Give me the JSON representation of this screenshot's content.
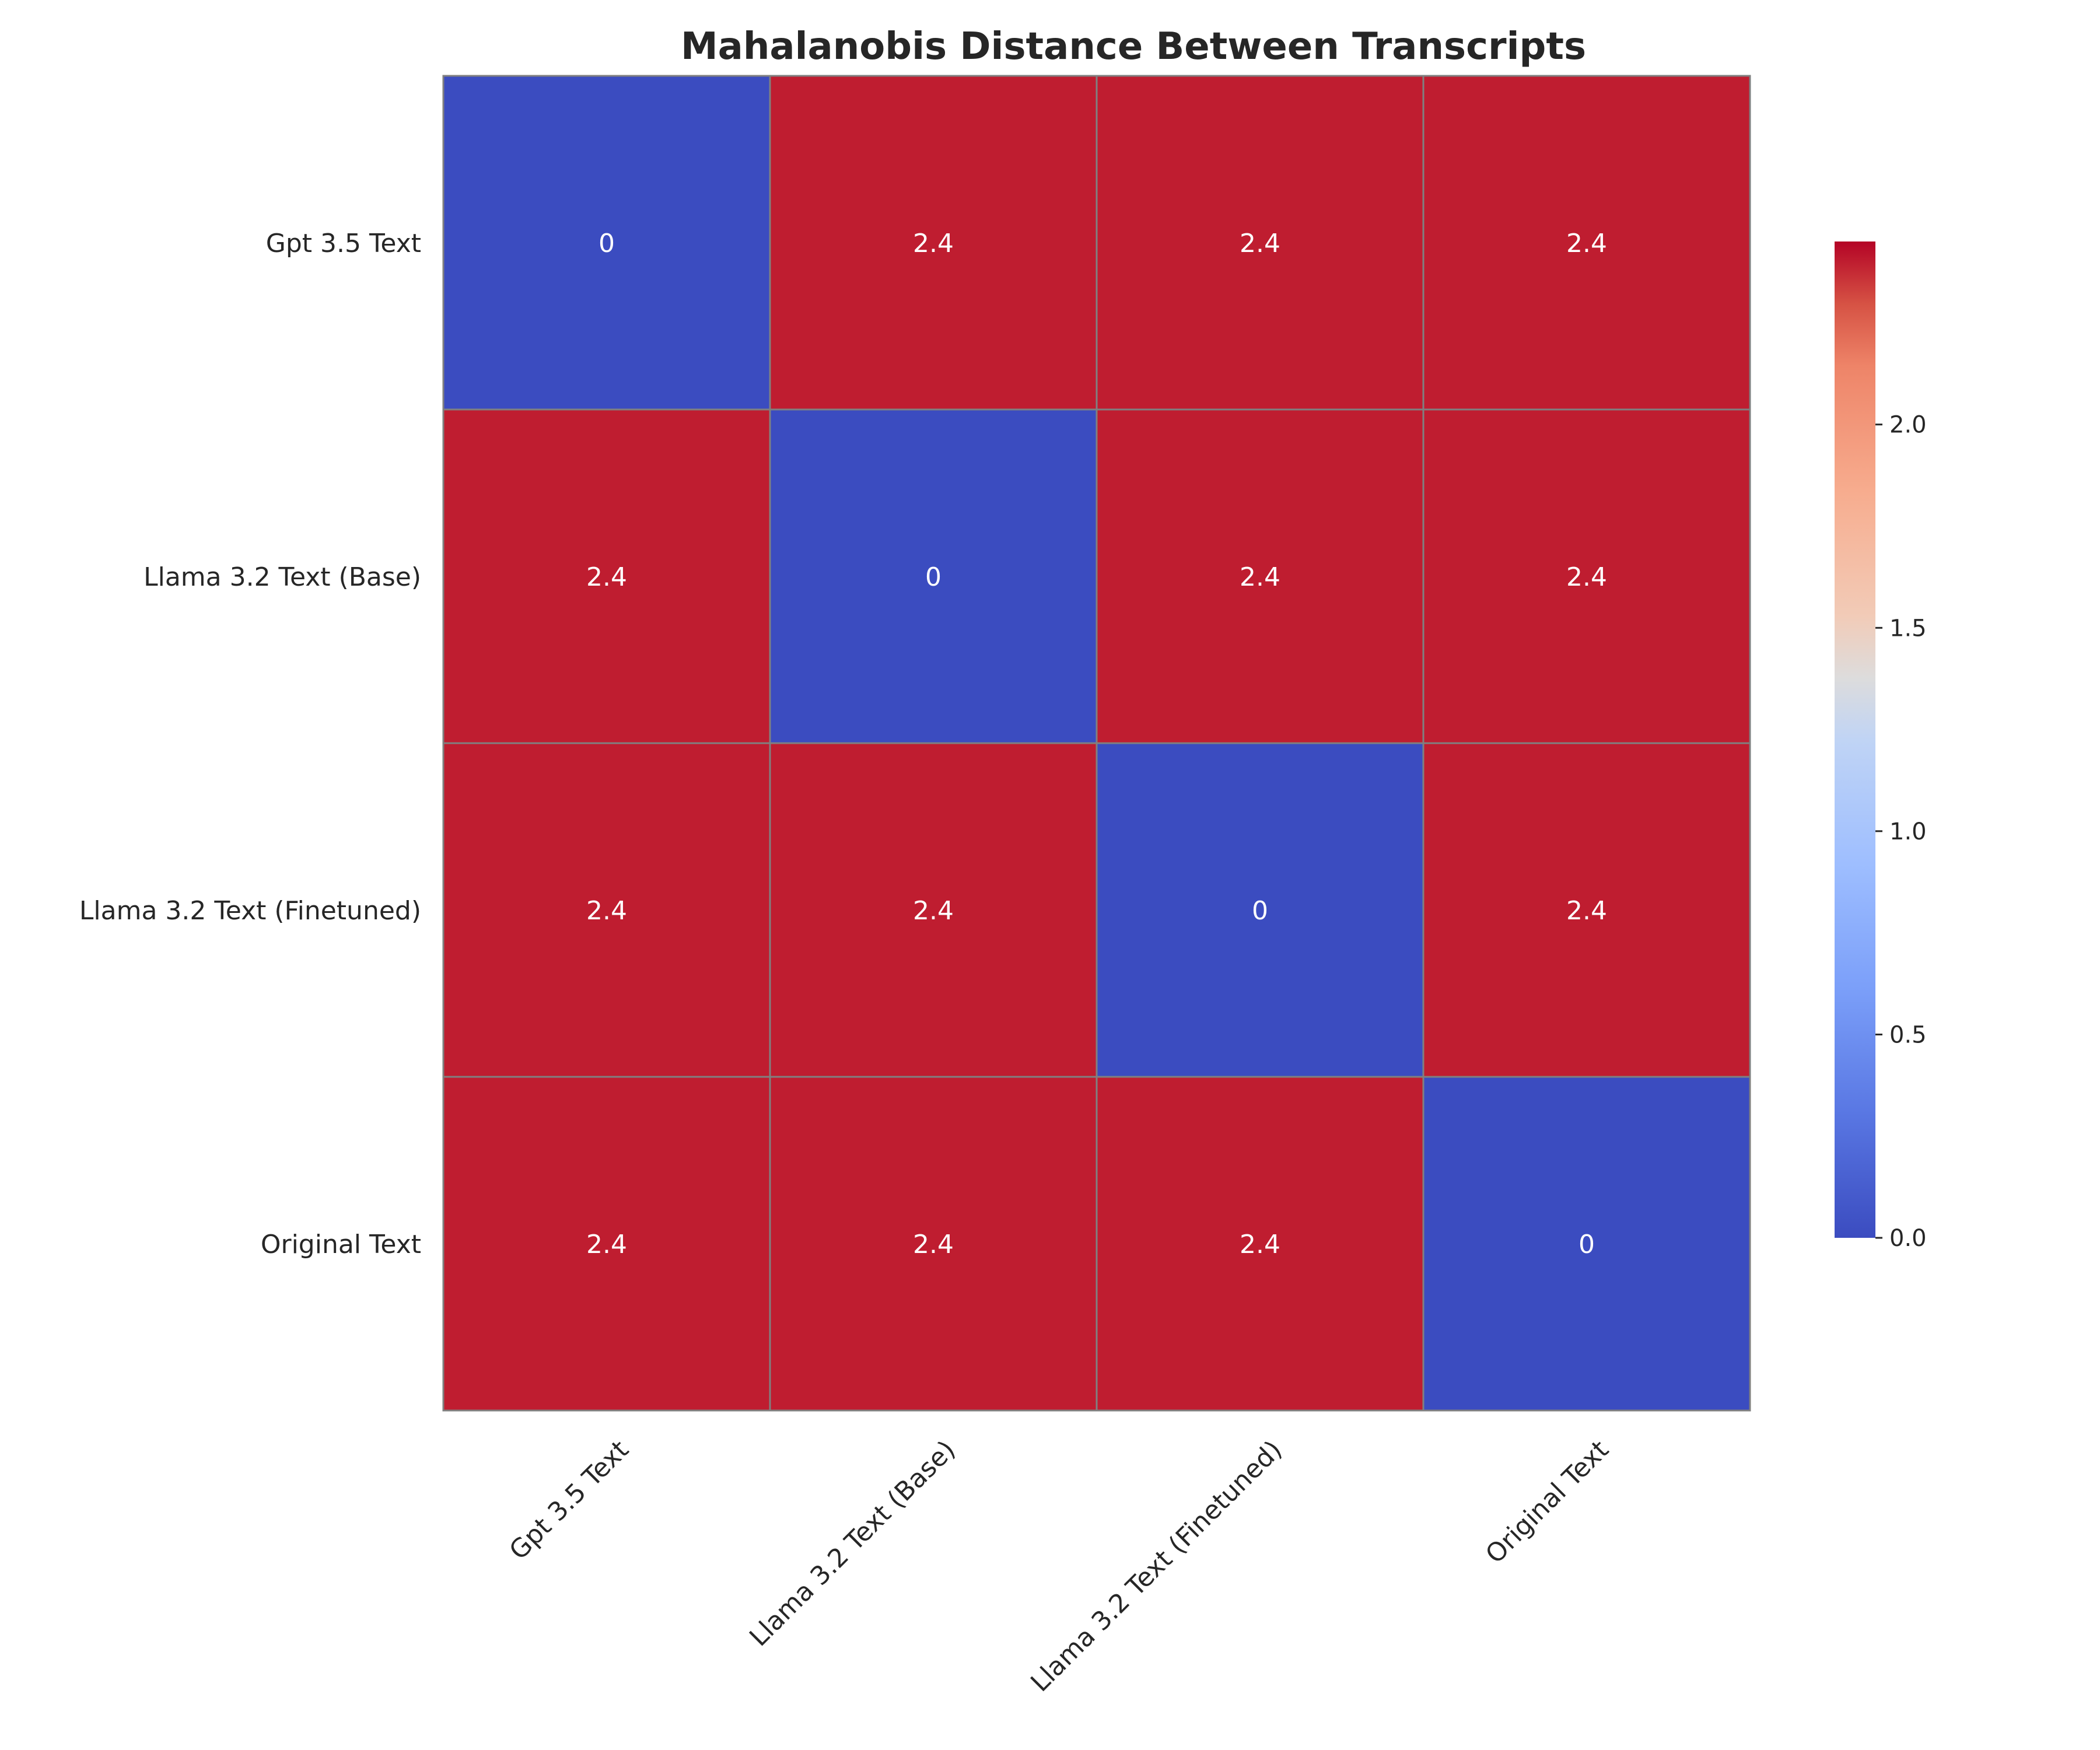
{
  "chart_data": {
    "type": "heatmap",
    "title": "Mahalanobis Distance Between Transcripts",
    "rows": [
      "Gpt 3.5 Text",
      "Llama 3.2 Text (Base)",
      "Llama 3.2 Text (Finetuned)",
      "Original Text"
    ],
    "columns": [
      "Gpt 3.5 Text",
      "Llama 3.2 Text (Base)",
      "Llama 3.2 Text (Finetuned)",
      "Original Text"
    ],
    "values": [
      [
        0,
        2.4,
        2.4,
        2.4
      ],
      [
        2.4,
        0,
        2.4,
        2.4
      ],
      [
        2.4,
        2.4,
        0,
        2.4
      ],
      [
        2.4,
        2.4,
        2.4,
        0
      ]
    ],
    "cell_labels": [
      [
        "0",
        "2.4",
        "2.4",
        "2.4"
      ],
      [
        "2.4",
        "0",
        "2.4",
        "2.4"
      ],
      [
        "2.4",
        "2.4",
        "0",
        "2.4"
      ],
      [
        "2.4",
        "2.4",
        "2.4",
        "0"
      ]
    ],
    "colormap": "coolwarm",
    "low_color": "#3b4cc0",
    "high_color": "#b40426",
    "grid_line_color": "#808080",
    "vmin": 0,
    "vmax": 2.45,
    "colorbar": {
      "position": "right",
      "ticks": [
        0.0,
        0.5,
        1.0,
        1.5,
        2.0
      ],
      "tick_labels": [
        "0.0",
        "0.5",
        "1.0",
        "1.5",
        "2.0"
      ]
    }
  }
}
